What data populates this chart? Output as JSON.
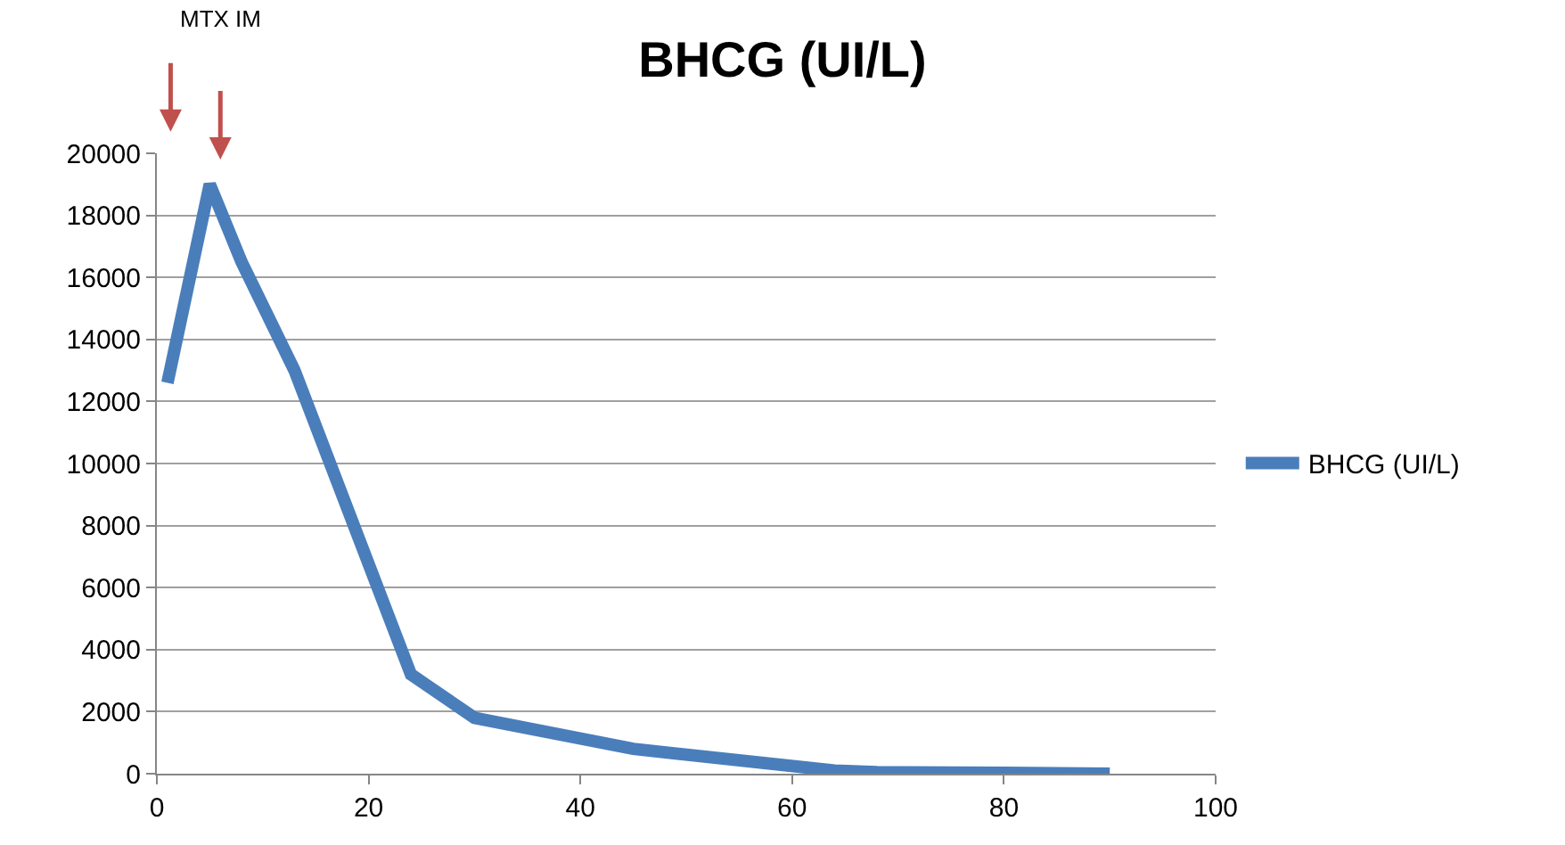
{
  "chart_data": {
    "type": "line",
    "title": "BHCG (UI/L)",
    "x": [
      1,
      5,
      8,
      13,
      24,
      30,
      45,
      64,
      68,
      80,
      90
    ],
    "series": [
      {
        "name": "BHCG (UI/L)",
        "color": "#4a7ebb",
        "values": [
          12600,
          19000,
          16500,
          13000,
          3200,
          1800,
          800,
          100,
          50,
          30,
          0
        ]
      }
    ],
    "xlim": [
      0,
      100
    ],
    "xticks": [
      0,
      20,
      40,
      60,
      80,
      100
    ],
    "ylim": [
      0,
      20000
    ],
    "yticks": [
      0,
      2000,
      4000,
      6000,
      8000,
      10000,
      12000,
      14000,
      16000,
      18000,
      20000
    ],
    "grid": "y",
    "legend": "right",
    "marker": "none",
    "line_style": "solid",
    "annotations": [
      "MTX IM"
    ]
  }
}
